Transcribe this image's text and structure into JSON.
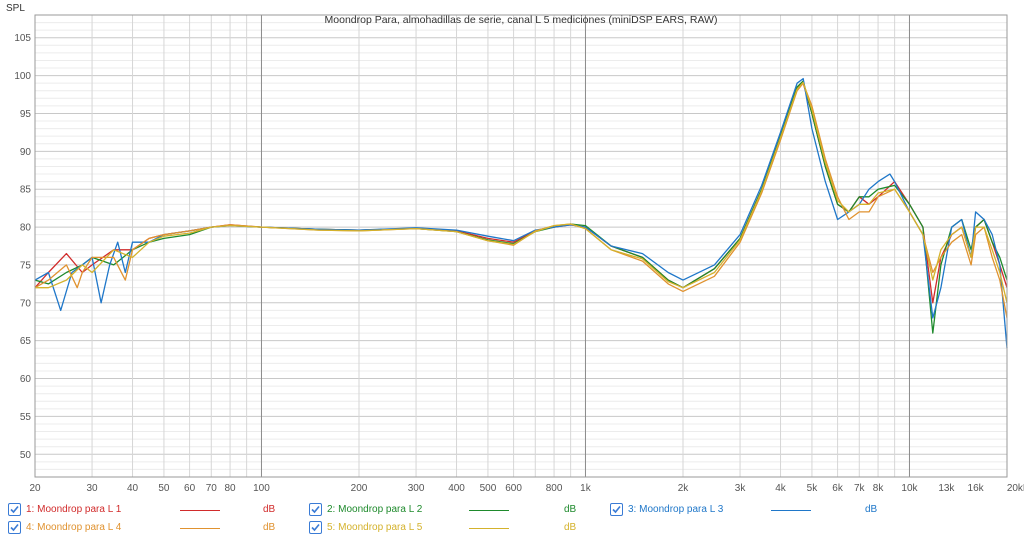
{
  "chart_data": {
    "type": "line",
    "title": "Moondrop Para, almohadillas de serie, canal L 5 mediciones (miniDSP EARS, RAW)",
    "ylabel": "SPL",
    "xlabel": "",
    "x_scale": "log",
    "xlim": [
      20,
      20000
    ],
    "ylim": [
      47,
      108
    ],
    "y_ticks": [
      50,
      55,
      60,
      65,
      70,
      75,
      80,
      85,
      90,
      95,
      100,
      105
    ],
    "y_tick_labels": [
      "50",
      "55",
      "60",
      "65",
      "70",
      "75",
      "80",
      "85",
      "90",
      "95",
      "100",
      "105"
    ],
    "x_ticks": [
      20,
      30,
      40,
      50,
      60,
      70,
      80,
      100,
      200,
      300,
      400,
      500,
      600,
      800,
      1000,
      2000,
      3000,
      4000,
      5000,
      6000,
      7000,
      8000,
      10000,
      13000,
      16000,
      20000
    ],
    "x_tick_labels": [
      "20",
      "30",
      "40",
      "50",
      "60",
      "70",
      "80",
      "100",
      "200",
      "300",
      "400",
      "500",
      "600",
      "800",
      "1k",
      "2k",
      "3k",
      "4k",
      "5k",
      "6k",
      "7k",
      "8k",
      "10k",
      "13k",
      "16k",
      "20kHz"
    ],
    "grid": true,
    "legend_position": "bottom",
    "series": [
      {
        "name": "1: Moondrop para L 1",
        "unit": "dB",
        "color": "#d12b2b",
        "points": [
          [
            20,
            72
          ],
          [
            22,
            74
          ],
          [
            25,
            76.5
          ],
          [
            28,
            74
          ],
          [
            30,
            75
          ],
          [
            35,
            77
          ],
          [
            40,
            77
          ],
          [
            45,
            78.5
          ],
          [
            50,
            79
          ],
          [
            60,
            79.5
          ],
          [
            70,
            80
          ],
          [
            80,
            80.3
          ],
          [
            100,
            80
          ],
          [
            150,
            79.7
          ],
          [
            200,
            79.6
          ],
          [
            300,
            79.8
          ],
          [
            400,
            79.5
          ],
          [
            500,
            78.5
          ],
          [
            600,
            78
          ],
          [
            700,
            79.5
          ],
          [
            800,
            80
          ],
          [
            900,
            80.3
          ],
          [
            1000,
            80
          ],
          [
            1200,
            77.5
          ],
          [
            1500,
            76
          ],
          [
            1800,
            73
          ],
          [
            2000,
            72
          ],
          [
            2500,
            74.5
          ],
          [
            3000,
            78.5
          ],
          [
            3500,
            85
          ],
          [
            4000,
            92
          ],
          [
            4500,
            98.5
          ],
          [
            4700,
            99
          ],
          [
            5000,
            95
          ],
          [
            5500,
            88
          ],
          [
            6000,
            83
          ],
          [
            6500,
            82
          ],
          [
            7000,
            84
          ],
          [
            7500,
            83
          ],
          [
            8000,
            84
          ],
          [
            9000,
            86
          ],
          [
            10000,
            83
          ],
          [
            11000,
            80
          ],
          [
            11800,
            70
          ],
          [
            12500,
            76
          ],
          [
            13500,
            79
          ],
          [
            14500,
            80
          ],
          [
            15500,
            76
          ],
          [
            16000,
            80
          ],
          [
            17000,
            81
          ],
          [
            18000,
            78
          ],
          [
            19000,
            75
          ],
          [
            20000,
            72
          ]
        ]
      },
      {
        "name": "2: Moondrop para L 2",
        "unit": "dB",
        "color": "#1e8a2c",
        "points": [
          [
            20,
            73
          ],
          [
            22,
            72.5
          ],
          [
            25,
            74
          ],
          [
            28,
            75
          ],
          [
            30,
            76
          ],
          [
            35,
            75
          ],
          [
            40,
            77
          ],
          [
            45,
            78
          ],
          [
            50,
            78.5
          ],
          [
            60,
            79
          ],
          [
            70,
            80
          ],
          [
            80,
            80.2
          ],
          [
            100,
            80
          ],
          [
            150,
            79.7
          ],
          [
            200,
            79.6
          ],
          [
            300,
            79.8
          ],
          [
            400,
            79.4
          ],
          [
            500,
            78.3
          ],
          [
            600,
            77.8
          ],
          [
            700,
            79.4
          ],
          [
            800,
            80
          ],
          [
            900,
            80.4
          ],
          [
            1000,
            80.2
          ],
          [
            1200,
            77.5
          ],
          [
            1500,
            76
          ],
          [
            1800,
            73
          ],
          [
            2000,
            72
          ],
          [
            2500,
            74.5
          ],
          [
            3000,
            78.5
          ],
          [
            3500,
            85
          ],
          [
            4000,
            92
          ],
          [
            4500,
            98.5
          ],
          [
            4700,
            99.3
          ],
          [
            5000,
            95
          ],
          [
            5500,
            88
          ],
          [
            6000,
            83
          ],
          [
            6500,
            82
          ],
          [
            7000,
            84
          ],
          [
            7500,
            84
          ],
          [
            8000,
            85
          ],
          [
            9000,
            85.5
          ],
          [
            10000,
            83
          ],
          [
            11000,
            80
          ],
          [
            11800,
            66
          ],
          [
            12500,
            75
          ],
          [
            13500,
            80
          ],
          [
            14500,
            81
          ],
          [
            15500,
            77
          ],
          [
            16000,
            80
          ],
          [
            17000,
            81
          ],
          [
            18000,
            78
          ],
          [
            19000,
            76
          ],
          [
            20000,
            73
          ]
        ]
      },
      {
        "name": "3: Moondrop para L 3",
        "unit": "dB",
        "color": "#1f77c9",
        "points": [
          [
            20,
            73
          ],
          [
            22,
            74
          ],
          [
            24,
            69
          ],
          [
            26,
            74
          ],
          [
            28,
            75
          ],
          [
            30,
            76
          ],
          [
            32,
            70
          ],
          [
            34,
            75
          ],
          [
            36,
            78
          ],
          [
            38,
            74
          ],
          [
            40,
            78
          ],
          [
            45,
            78
          ],
          [
            50,
            79
          ],
          [
            60,
            79.5
          ],
          [
            70,
            80
          ],
          [
            80,
            80.2
          ],
          [
            100,
            80
          ],
          [
            150,
            79.7
          ],
          [
            200,
            79.6
          ],
          [
            300,
            79.9
          ],
          [
            400,
            79.6
          ],
          [
            500,
            78.8
          ],
          [
            600,
            78.2
          ],
          [
            700,
            79.6
          ],
          [
            800,
            80
          ],
          [
            900,
            80.3
          ],
          [
            1000,
            80
          ],
          [
            1200,
            77.5
          ],
          [
            1500,
            76.5
          ],
          [
            1800,
            74
          ],
          [
            2000,
            73
          ],
          [
            2500,
            75
          ],
          [
            3000,
            79
          ],
          [
            3500,
            85.5
          ],
          [
            4000,
            92.5
          ],
          [
            4500,
            99
          ],
          [
            4700,
            99.6
          ],
          [
            5000,
            93
          ],
          [
            5500,
            86
          ],
          [
            6000,
            81
          ],
          [
            6500,
            82
          ],
          [
            7000,
            83
          ],
          [
            7500,
            85
          ],
          [
            8000,
            86
          ],
          [
            8700,
            87
          ],
          [
            9000,
            86
          ],
          [
            10000,
            82
          ],
          [
            11000,
            79
          ],
          [
            11800,
            68
          ],
          [
            12500,
            72
          ],
          [
            13500,
            80
          ],
          [
            14500,
            81
          ],
          [
            15500,
            76
          ],
          [
            16000,
            82
          ],
          [
            17000,
            81
          ],
          [
            18000,
            79
          ],
          [
            19000,
            75
          ],
          [
            20000,
            64
          ]
        ]
      },
      {
        "name": "4: Moondrop para L 4",
        "unit": "dB",
        "color": "#e0922f",
        "points": [
          [
            20,
            72
          ],
          [
            22,
            73
          ],
          [
            25,
            75
          ],
          [
            27,
            72
          ],
          [
            28,
            74
          ],
          [
            30,
            76
          ],
          [
            35,
            76
          ],
          [
            38,
            73
          ],
          [
            40,
            77
          ],
          [
            45,
            78.5
          ],
          [
            50,
            79
          ],
          [
            60,
            79.5
          ],
          [
            70,
            80
          ],
          [
            80,
            80.3
          ],
          [
            100,
            80
          ],
          [
            150,
            79.6
          ],
          [
            200,
            79.5
          ],
          [
            300,
            79.8
          ],
          [
            400,
            79.4
          ],
          [
            500,
            78.2
          ],
          [
            600,
            77.6
          ],
          [
            700,
            79.5
          ],
          [
            800,
            80.2
          ],
          [
            900,
            80.4
          ],
          [
            1000,
            79.8
          ],
          [
            1200,
            77
          ],
          [
            1500,
            75.5
          ],
          [
            1800,
            72.5
          ],
          [
            2000,
            71.5
          ],
          [
            2500,
            73.5
          ],
          [
            3000,
            78
          ],
          [
            3500,
            84.5
          ],
          [
            4000,
            91.5
          ],
          [
            4500,
            98
          ],
          [
            4700,
            99
          ],
          [
            5000,
            96
          ],
          [
            5500,
            89
          ],
          [
            6000,
            84
          ],
          [
            6500,
            81
          ],
          [
            7000,
            82
          ],
          [
            7500,
            82
          ],
          [
            8000,
            84
          ],
          [
            9000,
            85
          ],
          [
            10000,
            82
          ],
          [
            11000,
            79
          ],
          [
            11800,
            74
          ],
          [
            12500,
            76
          ],
          [
            13500,
            78
          ],
          [
            14500,
            79
          ],
          [
            15500,
            75
          ],
          [
            16000,
            79
          ],
          [
            17000,
            80
          ],
          [
            18000,
            76
          ],
          [
            19000,
            73
          ],
          [
            20000,
            68
          ]
        ]
      },
      {
        "name": "5: Moondrop para L 5",
        "unit": "dB",
        "color": "#d4b22c",
        "points": [
          [
            20,
            72
          ],
          [
            22,
            72
          ],
          [
            25,
            73
          ],
          [
            28,
            75
          ],
          [
            30,
            74
          ],
          [
            35,
            77
          ],
          [
            40,
            76
          ],
          [
            45,
            78
          ],
          [
            50,
            78.8
          ],
          [
            60,
            79.2
          ],
          [
            70,
            80
          ],
          [
            80,
            80.2
          ],
          [
            100,
            80
          ],
          [
            150,
            79.6
          ],
          [
            200,
            79.5
          ],
          [
            300,
            79.8
          ],
          [
            400,
            79.4
          ],
          [
            500,
            78.2
          ],
          [
            600,
            77.7
          ],
          [
            700,
            79.4
          ],
          [
            800,
            80.2
          ],
          [
            900,
            80.4
          ],
          [
            1000,
            79.8
          ],
          [
            1200,
            77
          ],
          [
            1500,
            75.8
          ],
          [
            1800,
            72.8
          ],
          [
            2000,
            72
          ],
          [
            2500,
            74
          ],
          [
            3000,
            78.3
          ],
          [
            3500,
            84.8
          ],
          [
            4000,
            91.8
          ],
          [
            4500,
            98.2
          ],
          [
            4700,
            99.1
          ],
          [
            5000,
            95.5
          ],
          [
            5500,
            88.5
          ],
          [
            6000,
            83.5
          ],
          [
            6500,
            82
          ],
          [
            7000,
            83
          ],
          [
            7500,
            83
          ],
          [
            8000,
            84.5
          ],
          [
            9000,
            85
          ],
          [
            10000,
            82
          ],
          [
            11000,
            79
          ],
          [
            11800,
            73
          ],
          [
            12500,
            77
          ],
          [
            13500,
            79
          ],
          [
            14500,
            80
          ],
          [
            15500,
            76
          ],
          [
            16000,
            80
          ],
          [
            17000,
            80
          ],
          [
            18000,
            77
          ],
          [
            19000,
            74
          ],
          [
            20000,
            70
          ]
        ]
      }
    ]
  }
}
